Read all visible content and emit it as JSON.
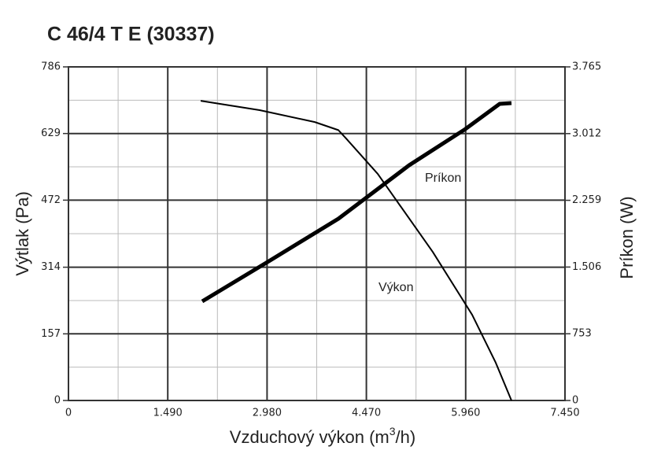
{
  "chart_data": {
    "type": "line",
    "title": "C 46/4 T E (30337)",
    "xlabel_parts": [
      "Vzduchový výkon (m",
      "3",
      "/h)"
    ],
    "ylabel": "Výtlak (Pa)",
    "y2label": "Príkon (W)",
    "xlim": [
      0,
      7450
    ],
    "xticks": [
      0,
      {
        "value": 1490,
        "label": "1.490"
      },
      {
        "value": 2980,
        "label": "2.980"
      },
      {
        "value": 4470,
        "label": "4.470"
      },
      {
        "value": 5960,
        "label": "5.960"
      },
      {
        "value": 7450,
        "label": "7.450"
      }
    ],
    "ylim": [
      0,
      786
    ],
    "yticks": [
      0,
      157,
      314,
      472,
      629,
      786
    ],
    "y2lim": [
      0,
      3765
    ],
    "y2ticks": [
      0,
      753,
      {
        "value": 1506,
        "label": "1.506"
      },
      {
        "value": 2259,
        "label": "2.259"
      },
      {
        "value": 3012,
        "label": "3.012"
      },
      {
        "value": 3765,
        "label": "3.765"
      }
    ],
    "grid": true,
    "series": [
      {
        "name": "Výkon",
        "color": "#000000",
        "x": [
          1984,
          2869,
          3696,
          4050,
          4168,
          4640,
          5466,
          6057,
          6411,
          6647
        ],
        "values": [
          706,
          684,
          656,
          637,
          617,
          534,
          350,
          202,
          89,
          0
        ]
      },
      {
        "name": "Príkon",
        "color": "#000000",
        "axis": "y2",
        "x": [
          2007,
          2987,
          4050,
          5112,
          5939,
          6470,
          6647
        ],
        "values": [
          1119,
          1563,
          2051,
          2655,
          3055,
          3348,
          3357
        ]
      }
    ]
  }
}
